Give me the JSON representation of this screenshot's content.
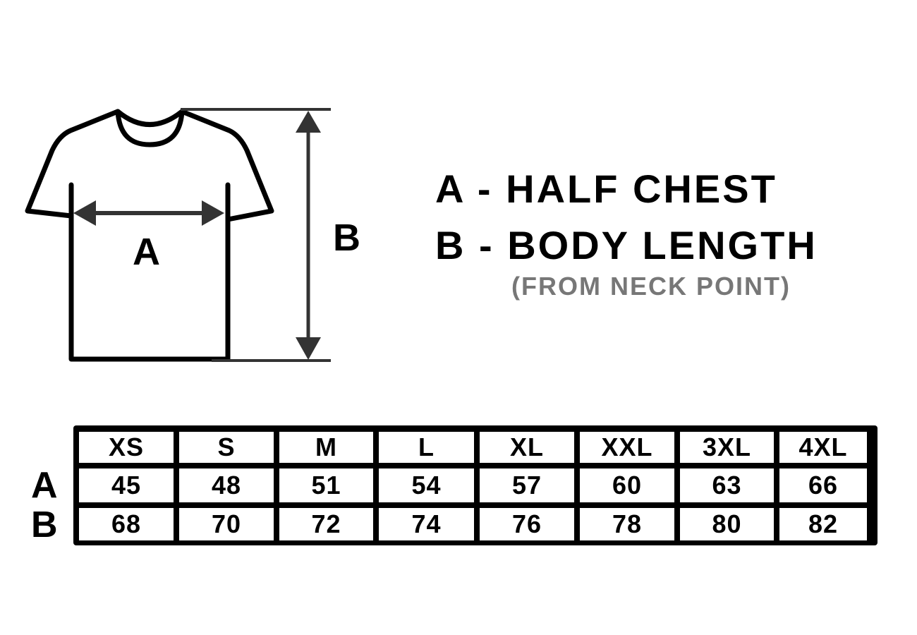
{
  "legend": {
    "a": "A - HALF CHEST",
    "b": "B - BODY LENGTH",
    "note": "(FROM NECK POINT)"
  },
  "diagram": {
    "label_a": "A",
    "label_b": "B"
  },
  "table": {
    "sizes": [
      "XS",
      "S",
      "M",
      "L",
      "XL",
      "XXL",
      "3XL",
      "4XL"
    ],
    "rows": [
      {
        "label": "A",
        "values": [
          "45",
          "48",
          "51",
          "54",
          "57",
          "60",
          "63",
          "66"
        ]
      },
      {
        "label": "B",
        "values": [
          "68",
          "70",
          "72",
          "74",
          "76",
          "78",
          "80",
          "82"
        ]
      }
    ]
  },
  "colors": {
    "line": "#000000",
    "arrow": "#333333",
    "note": "#777777"
  }
}
